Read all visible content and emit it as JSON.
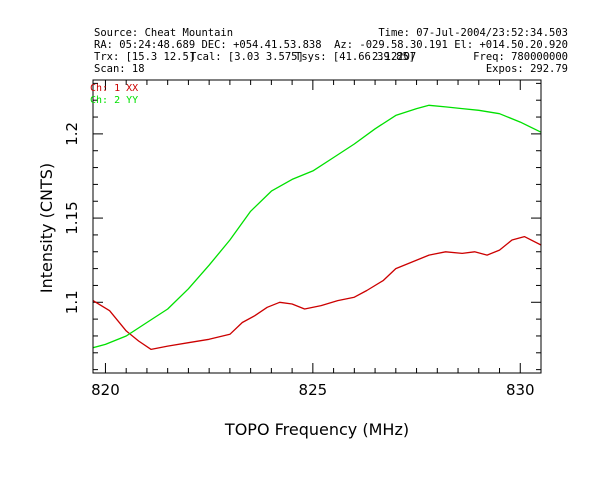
{
  "header": {
    "source": "Source: Cheat Mountain",
    "time": "Time: 07-Jul-2004/23:52:34.503",
    "ra_dec": "RA: 05:24:48.689 DEC: +054.41.53.838",
    "az_el": "Az: -029.58.30.191 El: +014.50.20.920",
    "trx": "Trx: [15.3 12.5]",
    "tcal": "Tcal: [3.03 3.575]",
    "tsys": "Tsys: [41.66 39.85]",
    "bw_overlap": "2.12207",
    "freq": "Freq: 780000000",
    "scan": "Scan: 18",
    "expos": "Expos: 292.79"
  },
  "chart_data": {
    "type": "line",
    "xlabel": "TOPO Frequency (MHz)",
    "ylabel": "Intensity (CNTS)",
    "xlim": [
      819.7,
      830.5
    ],
    "ylim": [
      1.058,
      1.232
    ],
    "x_ticks": [
      820,
      825,
      830
    ],
    "x_tick_labels": [
      "820",
      "825",
      "830"
    ],
    "y_ticks": [
      1.1,
      1.15,
      1.2
    ],
    "y_tick_labels": [
      "1.1",
      "1.15",
      "1.2"
    ],
    "x_minor_step": 0.5,
    "y_minor_step": 0.01,
    "grid": false,
    "legend_position": "top-left inside",
    "series": [
      {
        "name": "Ch: 1 XX",
        "color": "#cc0000",
        "x": [
          819.7,
          820.1,
          820.5,
          820.8,
          821.1,
          821.5,
          822.0,
          822.5,
          823.0,
          823.3,
          823.6,
          823.9,
          824.2,
          824.5,
          824.8,
          825.2,
          825.6,
          826.0,
          826.3,
          826.7,
          827.0,
          827.4,
          827.8,
          828.2,
          828.6,
          828.9,
          829.2,
          829.5,
          829.8,
          830.1,
          830.5
        ],
        "y": [
          1.101,
          1.095,
          1.083,
          1.077,
          1.072,
          1.074,
          1.076,
          1.078,
          1.081,
          1.088,
          1.092,
          1.097,
          1.1,
          1.099,
          1.096,
          1.098,
          1.101,
          1.103,
          1.107,
          1.113,
          1.12,
          1.124,
          1.128,
          1.13,
          1.129,
          1.13,
          1.128,
          1.131,
          1.137,
          1.139,
          1.134
        ]
      },
      {
        "name": "Ch: 2 YY",
        "color": "#00e000",
        "x": [
          819.7,
          820.0,
          820.5,
          821.0,
          821.5,
          822.0,
          822.5,
          823.0,
          823.5,
          824.0,
          824.5,
          825.0,
          825.5,
          826.0,
          826.5,
          827.0,
          827.5,
          827.8,
          828.2,
          828.6,
          829.0,
          829.5,
          830.0,
          830.5
        ],
        "y": [
          1.073,
          1.075,
          1.08,
          1.088,
          1.096,
          1.108,
          1.122,
          1.137,
          1.154,
          1.166,
          1.173,
          1.178,
          1.186,
          1.194,
          1.203,
          1.211,
          1.215,
          1.217,
          1.216,
          1.215,
          1.214,
          1.212,
          1.207,
          1.201
        ]
      }
    ]
  }
}
